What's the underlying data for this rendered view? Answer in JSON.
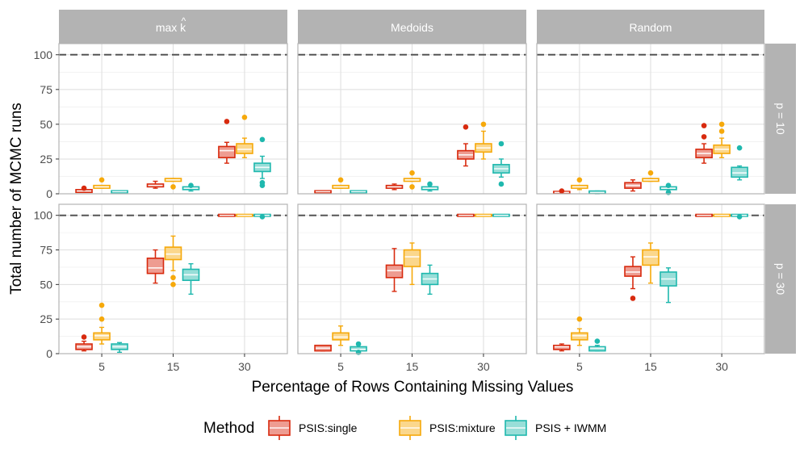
{
  "chart_data": {
    "type": "boxplot",
    "ylabel": "Total number of MCMC runs",
    "xlabel": "Percentage of Rows Containing Missing Values",
    "categories": [
      "5",
      "15",
      "30"
    ],
    "y_ticks": [
      "0",
      "25",
      "50",
      "75",
      "100"
    ],
    "ylim": [
      0,
      108
    ],
    "reference_line": 100,
    "facet_cols": [
      {
        "id": "max",
        "label": "max k",
        "hat": "^"
      },
      {
        "id": "medoids",
        "label": "Medoids"
      },
      {
        "id": "random",
        "label": "Random"
      }
    ],
    "facet_rows": [
      {
        "id": "p10",
        "label": "p = 10"
      },
      {
        "id": "p30",
        "label": "p = 30"
      }
    ],
    "legend": {
      "title": "Method",
      "items": [
        {
          "name": "PSIS:single",
          "color": "#D82A0E",
          "fill": "#EE9C91"
        },
        {
          "name": "PSIS:mixture",
          "color": "#F6A90B",
          "fill": "#FBD78C"
        },
        {
          "name": "PSIS + IWMM",
          "color": "#1FB8AE",
          "fill": "#98DED8"
        }
      ]
    },
    "panels": [
      {
        "row": "p10",
        "col": "max",
        "boxes": [
          {
            "cat": "5",
            "series": "PSIS:single",
            "q1": 1,
            "median": 2,
            "q3": 3,
            "lo": 1,
            "hi": 3,
            "outliers": [
              4
            ]
          },
          {
            "cat": "5",
            "series": "PSIS:mixture",
            "q1": 4,
            "median": 5,
            "q3": 6,
            "lo": 4,
            "hi": 6,
            "outliers": [
              10
            ]
          },
          {
            "cat": "5",
            "series": "PSIS + IWMM",
            "q1": 1,
            "median": 1.5,
            "q3": 2,
            "lo": 1,
            "hi": 2,
            "outliers": []
          },
          {
            "cat": "15",
            "series": "PSIS:single",
            "q1": 5,
            "median": 6,
            "q3": 7,
            "lo": 4,
            "hi": 9,
            "outliers": []
          },
          {
            "cat": "15",
            "series": "PSIS:mixture",
            "q1": 9,
            "median": 10,
            "q3": 11,
            "lo": 9,
            "hi": 11,
            "outliers": [
              5
            ]
          },
          {
            "cat": "15",
            "series": "PSIS + IWMM",
            "q1": 3,
            "median": 4,
            "q3": 5,
            "lo": 2,
            "hi": 5,
            "outliers": [
              6
            ]
          },
          {
            "cat": "30",
            "series": "PSIS:single",
            "q1": 26,
            "median": 31,
            "q3": 34,
            "lo": 22,
            "hi": 37,
            "outliers": [
              52
            ]
          },
          {
            "cat": "30",
            "series": "PSIS:mixture",
            "q1": 29,
            "median": 32,
            "q3": 36,
            "lo": 26,
            "hi": 40,
            "outliers": [
              55
            ]
          },
          {
            "cat": "30",
            "series": "PSIS + IWMM",
            "q1": 16,
            "median": 19,
            "q3": 22,
            "lo": 11,
            "hi": 27,
            "outliers": [
              39,
              8,
              6
            ]
          }
        ]
      },
      {
        "row": "p10",
        "col": "medoids",
        "boxes": [
          {
            "cat": "5",
            "series": "PSIS:single",
            "q1": 1,
            "median": 1.5,
            "q3": 2,
            "lo": 1,
            "hi": 2,
            "outliers": []
          },
          {
            "cat": "5",
            "series": "PSIS:mixture",
            "q1": 4,
            "median": 5,
            "q3": 6,
            "lo": 4,
            "hi": 6,
            "outliers": [
              10
            ]
          },
          {
            "cat": "5",
            "series": "PSIS + IWMM",
            "q1": 1,
            "median": 1.5,
            "q3": 2,
            "lo": 1,
            "hi": 2,
            "outliers": []
          },
          {
            "cat": "15",
            "series": "PSIS:single",
            "q1": 4,
            "median": 5,
            "q3": 6,
            "lo": 3,
            "hi": 7,
            "outliers": []
          },
          {
            "cat": "15",
            "series": "PSIS:mixture",
            "q1": 9,
            "median": 10,
            "q3": 11,
            "lo": 9,
            "hi": 11,
            "outliers": [
              15,
              5
            ]
          },
          {
            "cat": "15",
            "series": "PSIS + IWMM",
            "q1": 3,
            "median": 4,
            "q3": 5,
            "lo": 2,
            "hi": 5,
            "outliers": [
              7
            ]
          },
          {
            "cat": "30",
            "series": "PSIS:single",
            "q1": 25,
            "median": 28,
            "q3": 31,
            "lo": 20,
            "hi": 36,
            "outliers": [
              48
            ]
          },
          {
            "cat": "30",
            "series": "PSIS:mixture",
            "q1": 30,
            "median": 33,
            "q3": 36,
            "lo": 25,
            "hi": 45,
            "outliers": [
              50
            ]
          },
          {
            "cat": "30",
            "series": "PSIS + IWMM",
            "q1": 15,
            "median": 18,
            "q3": 21,
            "lo": 12,
            "hi": 25,
            "outliers": [
              36,
              7
            ]
          }
        ]
      },
      {
        "row": "p10",
        "col": "random",
        "boxes": [
          {
            "cat": "5",
            "series": "PSIS:single",
            "q1": 0.5,
            "median": 1,
            "q3": 1.5,
            "lo": 0.5,
            "hi": 1.5,
            "outliers": [
              2
            ]
          },
          {
            "cat": "5",
            "series": "PSIS:mixture",
            "q1": 4,
            "median": 5,
            "q3": 6,
            "lo": 3,
            "hi": 6,
            "outliers": [
              10
            ]
          },
          {
            "cat": "5",
            "series": "PSIS + IWMM",
            "q1": 0.5,
            "median": 1,
            "q3": 2,
            "lo": 0,
            "hi": 2,
            "outliers": []
          },
          {
            "cat": "15",
            "series": "PSIS:single",
            "q1": 4,
            "median": 6,
            "q3": 8,
            "lo": 2,
            "hi": 10,
            "outliers": []
          },
          {
            "cat": "15",
            "series": "PSIS:mixture",
            "q1": 9,
            "median": 10,
            "q3": 11,
            "lo": 9,
            "hi": 11,
            "outliers": [
              15
            ]
          },
          {
            "cat": "15",
            "series": "PSIS + IWMM",
            "q1": 3,
            "median": 4,
            "q3": 5,
            "lo": 1,
            "hi": 6,
            "outliers": [
              6,
              1
            ]
          },
          {
            "cat": "30",
            "series": "PSIS:single",
            "q1": 26,
            "median": 29,
            "q3": 32,
            "lo": 22,
            "hi": 36,
            "outliers": [
              49,
              41
            ]
          },
          {
            "cat": "30",
            "series": "PSIS:mixture",
            "q1": 29,
            "median": 32,
            "q3": 35,
            "lo": 26,
            "hi": 40,
            "outliers": [
              50,
              45
            ]
          },
          {
            "cat": "30",
            "series": "PSIS + IWMM",
            "q1": 12,
            "median": 15,
            "q3": 19,
            "lo": 10,
            "hi": 20,
            "outliers": [
              33
            ]
          }
        ]
      },
      {
        "row": "p30",
        "col": "max",
        "boxes": [
          {
            "cat": "5",
            "series": "PSIS:single",
            "q1": 3,
            "median": 5,
            "q3": 7,
            "lo": 2,
            "hi": 9,
            "outliers": [
              12
            ]
          },
          {
            "cat": "5",
            "series": "PSIS:mixture",
            "q1": 10,
            "median": 13,
            "q3": 15,
            "lo": 7,
            "hi": 19,
            "outliers": [
              35,
              25
            ]
          },
          {
            "cat": "5",
            "series": "PSIS + IWMM",
            "q1": 3,
            "median": 5,
            "q3": 7,
            "lo": 1,
            "hi": 8,
            "outliers": []
          },
          {
            "cat": "15",
            "series": "PSIS:single",
            "q1": 58,
            "median": 62,
            "q3": 69,
            "lo": 51,
            "hi": 75,
            "outliers": []
          },
          {
            "cat": "15",
            "series": "PSIS:mixture",
            "q1": 68,
            "median": 72,
            "q3": 77,
            "lo": 60,
            "hi": 85,
            "outliers": [
              55,
              50
            ]
          },
          {
            "cat": "15",
            "series": "PSIS + IWMM",
            "q1": 53,
            "median": 57,
            "q3": 61,
            "lo": 43,
            "hi": 65,
            "outliers": []
          },
          {
            "cat": "30",
            "series": "PSIS:single",
            "q1": 100,
            "median": 100,
            "q3": 100,
            "lo": 100,
            "hi": 100,
            "outliers": []
          },
          {
            "cat": "30",
            "series": "PSIS:mixture",
            "q1": 100,
            "median": 100,
            "q3": 100,
            "lo": 100,
            "hi": 100,
            "outliers": []
          },
          {
            "cat": "30",
            "series": "PSIS + IWMM",
            "q1": 100,
            "median": 100,
            "q3": 100,
            "lo": 100,
            "hi": 100,
            "outliers": [
              99
            ]
          }
        ]
      },
      {
        "row": "p30",
        "col": "medoids",
        "boxes": [
          {
            "cat": "5",
            "series": "PSIS:single",
            "q1": 2,
            "median": 4,
            "q3": 6,
            "lo": 2,
            "hi": 6,
            "outliers": []
          },
          {
            "cat": "5",
            "series": "PSIS:mixture",
            "q1": 10,
            "median": 12,
            "q3": 15,
            "lo": 6,
            "hi": 20,
            "outliers": []
          },
          {
            "cat": "5",
            "series": "PSIS + IWMM",
            "q1": 2,
            "median": 3,
            "q3": 5,
            "lo": 0,
            "hi": 7,
            "outliers": [
              7,
              1
            ]
          },
          {
            "cat": "15",
            "series": "PSIS:single",
            "q1": 55,
            "median": 60,
            "q3": 64,
            "lo": 45,
            "hi": 76,
            "outliers": []
          },
          {
            "cat": "15",
            "series": "PSIS:mixture",
            "q1": 63,
            "median": 70,
            "q3": 75,
            "lo": 50,
            "hi": 80,
            "outliers": []
          },
          {
            "cat": "15",
            "series": "PSIS + IWMM",
            "q1": 50,
            "median": 54,
            "q3": 58,
            "lo": 43,
            "hi": 64,
            "outliers": []
          },
          {
            "cat": "30",
            "series": "PSIS:single",
            "q1": 100,
            "median": 100,
            "q3": 100,
            "lo": 100,
            "hi": 100,
            "outliers": []
          },
          {
            "cat": "30",
            "series": "PSIS:mixture",
            "q1": 100,
            "median": 100,
            "q3": 100,
            "lo": 100,
            "hi": 100,
            "outliers": []
          },
          {
            "cat": "30",
            "series": "PSIS + IWMM",
            "q1": 100,
            "median": 100,
            "q3": 100,
            "lo": 100,
            "hi": 100,
            "outliers": []
          }
        ]
      },
      {
        "row": "p30",
        "col": "random",
        "boxes": [
          {
            "cat": "5",
            "series": "PSIS:single",
            "q1": 3,
            "median": 5,
            "q3": 6,
            "lo": 2,
            "hi": 7,
            "outliers": []
          },
          {
            "cat": "5",
            "series": "PSIS:mixture",
            "q1": 10,
            "median": 13,
            "q3": 15,
            "lo": 6,
            "hi": 18,
            "outliers": [
              25
            ]
          },
          {
            "cat": "5",
            "series": "PSIS + IWMM",
            "q1": 2,
            "median": 4,
            "q3": 5,
            "lo": 2,
            "hi": 6,
            "outliers": [
              9
            ]
          },
          {
            "cat": "15",
            "series": "PSIS:single",
            "q1": 56,
            "median": 59,
            "q3": 63,
            "lo": 47,
            "hi": 70,
            "outliers": [
              40
            ]
          },
          {
            "cat": "15",
            "series": "PSIS:mixture",
            "q1": 64,
            "median": 70,
            "q3": 75,
            "lo": 51,
            "hi": 80,
            "outliers": []
          },
          {
            "cat": "15",
            "series": "PSIS + IWMM",
            "q1": 49,
            "median": 54,
            "q3": 59,
            "lo": 37,
            "hi": 62,
            "outliers": []
          },
          {
            "cat": "30",
            "series": "PSIS:single",
            "q1": 100,
            "median": 100,
            "q3": 100,
            "lo": 100,
            "hi": 100,
            "outliers": []
          },
          {
            "cat": "30",
            "series": "PSIS:mixture",
            "q1": 100,
            "median": 100,
            "q3": 100,
            "lo": 100,
            "hi": 100,
            "outliers": []
          },
          {
            "cat": "30",
            "series": "PSIS + IWMM",
            "q1": 100,
            "median": 100,
            "q3": 100,
            "lo": 100,
            "hi": 100,
            "outliers": [
              99
            ]
          }
        ]
      }
    ]
  }
}
